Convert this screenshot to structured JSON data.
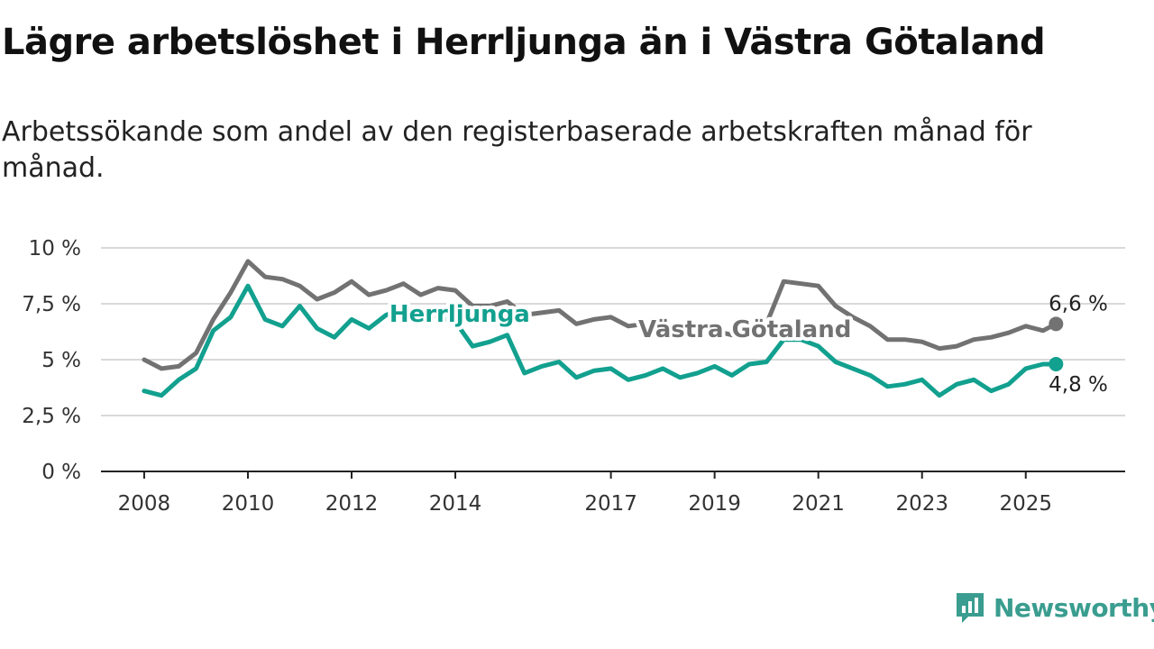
{
  "header": {
    "title": "Lägre arbetslöshet i Herrljunga än i Västra Götaland",
    "subtitle": "Arbetssökande som andel av den registerbaserade arbetskraften månad för månad."
  },
  "branding": {
    "name": "Newsworthy",
    "icon": "newsworthy-logo-icon",
    "color": "#3a9d8f"
  },
  "chart_data": {
    "type": "line",
    "title": "Lägre arbetslöshet i Herrljunga än i Västra Götaland",
    "subtitle": "Arbetssökande som andel av den registerbaserade arbetskraften månad för månad.",
    "xlabel": "",
    "ylabel": "",
    "x_ticks": [
      "2008",
      "2010",
      "2012",
      "2014",
      "2017",
      "2019",
      "2021",
      "2023",
      "2025"
    ],
    "y_ticks": [
      "0 %",
      "2,5 %",
      "5 %",
      "7,5 %",
      "10 %"
    ],
    "ylim": [
      0,
      10
    ],
    "xlim": [
      "2007-03",
      "2026-12"
    ],
    "grid": "horizontal",
    "legend": "inline labels",
    "series": [
      {
        "name": "Västra Götaland",
        "color": "#727272",
        "end_label": "6,6 %",
        "points": [
          [
            "2008-01",
            5.0
          ],
          [
            "2008-05",
            4.6
          ],
          [
            "2008-09",
            4.7
          ],
          [
            "2009-01",
            5.3
          ],
          [
            "2009-05",
            6.8
          ],
          [
            "2009-09",
            8.0
          ],
          [
            "2010-01",
            9.4
          ],
          [
            "2010-05",
            8.7
          ],
          [
            "2010-09",
            8.6
          ],
          [
            "2011-01",
            8.3
          ],
          [
            "2011-05",
            7.7
          ],
          [
            "2011-09",
            8.0
          ],
          [
            "2012-01",
            8.5
          ],
          [
            "2012-05",
            7.9
          ],
          [
            "2012-09",
            8.1
          ],
          [
            "2013-01",
            8.4
          ],
          [
            "2013-05",
            7.9
          ],
          [
            "2013-09",
            8.2
          ],
          [
            "2014-01",
            8.1
          ],
          [
            "2014-05",
            7.4
          ],
          [
            "2014-09",
            7.4
          ],
          [
            "2015-01",
            7.6
          ],
          [
            "2015-05",
            7.0
          ],
          [
            "2015-09",
            7.1
          ],
          [
            "2016-01",
            7.2
          ],
          [
            "2016-05",
            6.6
          ],
          [
            "2016-09",
            6.8
          ],
          [
            "2017-01",
            6.9
          ],
          [
            "2017-05",
            6.5
          ],
          [
            "2017-09",
            6.6
          ],
          [
            "2018-01",
            6.7
          ],
          [
            "2018-05",
            6.3
          ],
          [
            "2018-09",
            6.2
          ],
          [
            "2019-01",
            6.3
          ],
          [
            "2019-05",
            6.1
          ],
          [
            "2019-09",
            6.3
          ],
          [
            "2020-01",
            6.6
          ],
          [
            "2020-05",
            8.5
          ],
          [
            "2020-09",
            8.4
          ],
          [
            "2021-01",
            8.3
          ],
          [
            "2021-05",
            7.4
          ],
          [
            "2021-09",
            6.9
          ],
          [
            "2022-01",
            6.5
          ],
          [
            "2022-05",
            5.9
          ],
          [
            "2022-09",
            5.9
          ],
          [
            "2023-01",
            5.8
          ],
          [
            "2023-05",
            5.5
          ],
          [
            "2023-09",
            5.6
          ],
          [
            "2024-01",
            5.9
          ],
          [
            "2024-05",
            6.0
          ],
          [
            "2024-09",
            6.2
          ],
          [
            "2025-01",
            6.5
          ],
          [
            "2025-05",
            6.3
          ],
          [
            "2025-08",
            6.6
          ]
        ]
      },
      {
        "name": "Herrljunga",
        "color": "#12a08f",
        "end_label": "4,8 %",
        "points": [
          [
            "2008-01",
            3.6
          ],
          [
            "2008-05",
            3.4
          ],
          [
            "2008-09",
            4.1
          ],
          [
            "2009-01",
            4.6
          ],
          [
            "2009-05",
            6.3
          ],
          [
            "2009-09",
            6.9
          ],
          [
            "2010-01",
            8.3
          ],
          [
            "2010-05",
            6.8
          ],
          [
            "2010-09",
            6.5
          ],
          [
            "2011-01",
            7.4
          ],
          [
            "2011-05",
            6.4
          ],
          [
            "2011-09",
            6.0
          ],
          [
            "2012-01",
            6.8
          ],
          [
            "2012-05",
            6.4
          ],
          [
            "2012-09",
            7.0
          ],
          [
            "2013-01",
            7.3
          ],
          [
            "2013-05",
            7.0
          ],
          [
            "2013-09",
            6.9
          ],
          [
            "2014-01",
            6.7
          ],
          [
            "2014-05",
            5.6
          ],
          [
            "2014-09",
            5.8
          ],
          [
            "2015-01",
            6.1
          ],
          [
            "2015-05",
            4.4
          ],
          [
            "2015-09",
            4.7
          ],
          [
            "2016-01",
            4.9
          ],
          [
            "2016-05",
            4.2
          ],
          [
            "2016-09",
            4.5
          ],
          [
            "2017-01",
            4.6
          ],
          [
            "2017-05",
            4.1
          ],
          [
            "2017-09",
            4.3
          ],
          [
            "2018-01",
            4.6
          ],
          [
            "2018-05",
            4.2
          ],
          [
            "2018-09",
            4.4
          ],
          [
            "2019-01",
            4.7
          ],
          [
            "2019-05",
            4.3
          ],
          [
            "2019-09",
            4.8
          ],
          [
            "2020-01",
            4.9
          ],
          [
            "2020-05",
            5.9
          ],
          [
            "2020-09",
            5.9
          ],
          [
            "2021-01",
            5.6
          ],
          [
            "2021-05",
            4.9
          ],
          [
            "2021-09",
            4.6
          ],
          [
            "2022-01",
            4.3
          ],
          [
            "2022-05",
            3.8
          ],
          [
            "2022-09",
            3.9
          ],
          [
            "2023-01",
            4.1
          ],
          [
            "2023-05",
            3.4
          ],
          [
            "2023-09",
            3.9
          ],
          [
            "2024-01",
            4.1
          ],
          [
            "2024-05",
            3.6
          ],
          [
            "2024-09",
            3.9
          ],
          [
            "2025-01",
            4.6
          ],
          [
            "2025-05",
            4.8
          ],
          [
            "2025-08",
            4.8
          ]
        ]
      }
    ]
  }
}
